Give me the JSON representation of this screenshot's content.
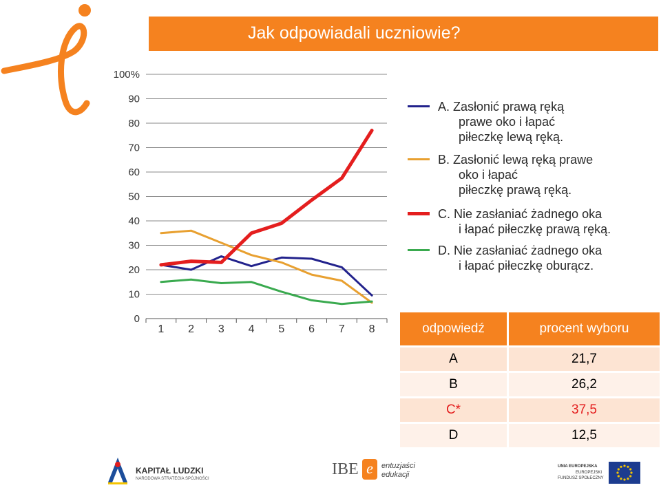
{
  "title": "Jak odpowiadali uczniowie?",
  "colors": {
    "accent": "#f5821f",
    "series_A": "#22228c",
    "series_B": "#e8a030",
    "series_C": "#e41e1e",
    "series_D": "#3aaa4f"
  },
  "chart_data": {
    "type": "line",
    "x": [
      1,
      2,
      3,
      4,
      5,
      6,
      7,
      8
    ],
    "x_tick_labels": [
      "1",
      "2",
      "3",
      "4",
      "5",
      "6",
      "7",
      "8"
    ],
    "y_tick_labels": [
      "0",
      "10",
      "20",
      "30",
      "40",
      "50",
      "60",
      "70",
      "80",
      "90",
      "100%"
    ],
    "ylim": [
      0,
      100
    ],
    "grid": "horizontal",
    "legend_position": "right",
    "series": [
      {
        "key": "A",
        "name": "A. Zasłonić prawą ręką prawe oko i łapać piłeczkę lewą ręką.",
        "color": "#22228c",
        "width": 3,
        "values": [
          22,
          20,
          25.5,
          21.5,
          25,
          24.5,
          21,
          9.5
        ]
      },
      {
        "key": "B",
        "name": "B. Zasłonić lewą ręką prawe oko i łapać piłeczkę prawą ręką.",
        "color": "#e8a030",
        "width": 3,
        "values": [
          35,
          36,
          31,
          26,
          23,
          18,
          15.5,
          6.5
        ]
      },
      {
        "key": "C",
        "name": "C. Nie zasłaniać żadnego oka i łapać piłeczkę prawą ręką.",
        "color": "#e41e1e",
        "width": 5,
        "values": [
          22,
          23.5,
          23,
          35,
          39,
          48.5,
          57.5,
          77
        ]
      },
      {
        "key": "D",
        "name": "D. Nie zasłaniać żadnego oka i łapać piłeczkę oburącz.",
        "color": "#3aaa4f",
        "width": 3,
        "values": [
          15,
          16,
          14.5,
          15,
          11,
          7.5,
          6,
          7
        ]
      }
    ]
  },
  "legend": [
    {
      "key": "A",
      "line1": "A. Zasłonić prawą ręką",
      "line2": "prawe oko i łapać",
      "line3": "piłeczkę lewą ręką."
    },
    {
      "key": "B",
      "line1": "B. Zasłonić lewą ręką prawe",
      "line2": "oko i łapać",
      "line3": "piłeczkę prawą ręką."
    },
    {
      "key": "C",
      "line1": "C. Nie zasłaniać żadnego oka",
      "line2": "i łapać piłeczkę prawą ręką."
    },
    {
      "key": "D",
      "line1": "D. Nie zasłaniać żadnego oka",
      "line2": "i łapać piłeczkę oburącz."
    }
  ],
  "table": {
    "headers": [
      "odpowiedź",
      "procent wyboru"
    ],
    "rows": [
      {
        "answer": "A",
        "percent": "21,7",
        "color": "#000000"
      },
      {
        "answer": "B",
        "percent": "26,2",
        "color": "#000000"
      },
      {
        "answer": "C*",
        "percent": "37,5",
        "color": "#e41e1e"
      },
      {
        "answer": "D",
        "percent": "12,5",
        "color": "#000000"
      }
    ]
  },
  "footer": {
    "kapital_title": "KAPITAŁ LUDZKI",
    "kapital_sub": "NARODOWA STRATEGIA SPÓJNOŚCI",
    "ibe": "IBE",
    "ibe_tag1": "entuzjaści",
    "ibe_tag2": "edukacji",
    "eu_line1": "UNIA EUROPEJSKA",
    "eu_line2": "EUROPEJSKI",
    "eu_line3": "FUNDUSZ SPOŁECZNY"
  }
}
